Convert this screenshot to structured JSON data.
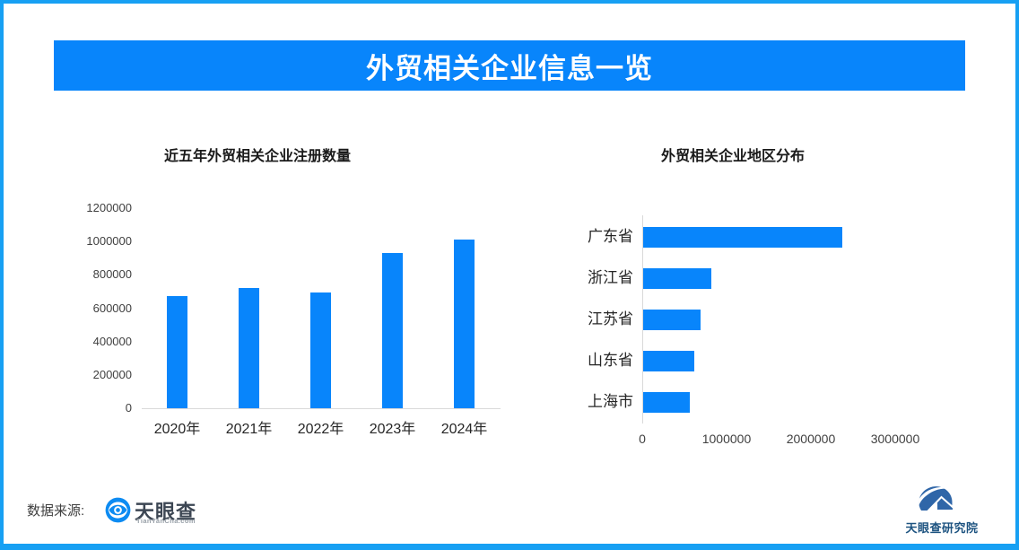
{
  "page": {
    "title": "外贸相关企业信息一览",
    "source_label": "数据来源:",
    "brand": {
      "name": "天眼查",
      "domain": "TianYanCha.com",
      "research": "天眼查研究院"
    },
    "colors": {
      "accent": "#0885fb",
      "frame_border": "#17a0f3",
      "axis_gray": "#d9d9d9",
      "tick_gray": "#404040",
      "label_dark": "#262626",
      "title_dark": "#1a1a1a",
      "brand_text": "#3c4653",
      "brand_domain_gray": "#98a0a8",
      "research_blue": "#1d5380"
    }
  },
  "chart_data": [
    {
      "type": "bar",
      "orientation": "vertical",
      "title": "近五年外贸相关企业注册数量",
      "categories": [
        "2020年",
        "2021年",
        "2022年",
        "2023年",
        "2024年"
      ],
      "values": [
        670000,
        720000,
        695000,
        930000,
        1010000
      ],
      "xlabel": "",
      "ylabel": "",
      "ylim": [
        0,
        1200000
      ],
      "yticks": [
        0,
        200000,
        400000,
        600000,
        800000,
        1000000,
        1200000
      ],
      "grid": false,
      "bar_color": "#0885fb"
    },
    {
      "type": "bar",
      "orientation": "horizontal",
      "title": "外贸相关企业地区分布",
      "categories": [
        "广东省",
        "浙江省",
        "江苏省",
        "山东省",
        "上海市"
      ],
      "values": [
        2360000,
        810000,
        680000,
        610000,
        550000
      ],
      "xlabel": "",
      "ylabel": "",
      "xlim": [
        0,
        3800000
      ],
      "xticks": [
        0,
        1000000,
        2000000,
        3000000
      ],
      "grid": false,
      "bar_color": "#0885fb"
    }
  ]
}
